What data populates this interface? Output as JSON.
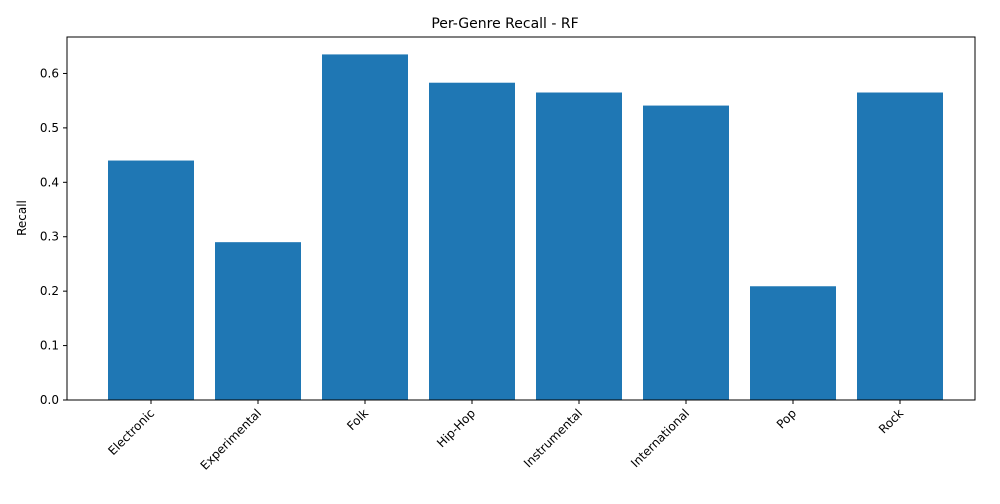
{
  "chart_data": {
    "type": "bar",
    "title": "Per-Genre Recall - RF",
    "xlabel": "",
    "ylabel": "Recall",
    "categories": [
      "Electronic",
      "Experimental",
      "Folk",
      "Hip-Hop",
      "Instrumental",
      "International",
      "Pop",
      "Rock"
    ],
    "values": [
      0.44,
      0.29,
      0.635,
      0.583,
      0.565,
      0.541,
      0.209,
      0.565
    ],
    "ylim": [
      0,
      0.667
    ],
    "yticks": [
      "0.0",
      "0.1",
      "0.2",
      "0.3",
      "0.4",
      "0.5",
      "0.6"
    ],
    "grid": false,
    "bar_color": "#1f77b4"
  }
}
